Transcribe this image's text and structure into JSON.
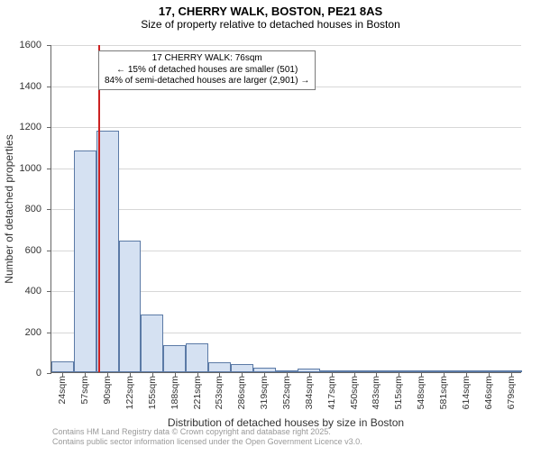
{
  "title": "17, CHERRY WALK, BOSTON, PE21 8AS",
  "subtitle": "Size of property relative to detached houses in Boston",
  "ylabel": "Number of detached properties",
  "xlabel": "Distribution of detached houses by size in Boston",
  "annotation": {
    "line1": "17 CHERRY WALK: 76sqm",
    "line2": "← 15% of detached houses are smaller (501)",
    "line3": "84% of semi-detached houses are larger (2,901) →"
  },
  "marker": {
    "value_sqm": 76,
    "color": "#cc2222"
  },
  "chart": {
    "type": "histogram",
    "bar_fill": "#d5e1f2",
    "bar_stroke": "#5b7aa6",
    "grid_color": "#d7d7d7",
    "axis_color": "#666666",
    "background_color": "#ffffff",
    "x_bin_start": 8,
    "x_bin_width": 32.7,
    "ylim": [
      0,
      1600
    ],
    "ytick_step": 200,
    "categories": [
      "24sqm",
      "57sqm",
      "90sqm",
      "122sqm",
      "155sqm",
      "188sqm",
      "221sqm",
      "253sqm",
      "286sqm",
      "319sqm",
      "352sqm",
      "384sqm",
      "417sqm",
      "450sqm",
      "483sqm",
      "515sqm",
      "548sqm",
      "581sqm",
      "614sqm",
      "646sqm",
      "679sqm"
    ],
    "values": [
      55,
      1080,
      1180,
      640,
      280,
      130,
      140,
      50,
      40,
      20,
      10,
      18,
      6,
      4,
      4,
      3,
      3,
      2,
      2,
      2,
      2
    ]
  },
  "credits": {
    "line1": "Contains HM Land Registry data © Crown copyright and database right 2025.",
    "line2": "Contains public sector information licensed under the Open Government Licence v3.0."
  }
}
